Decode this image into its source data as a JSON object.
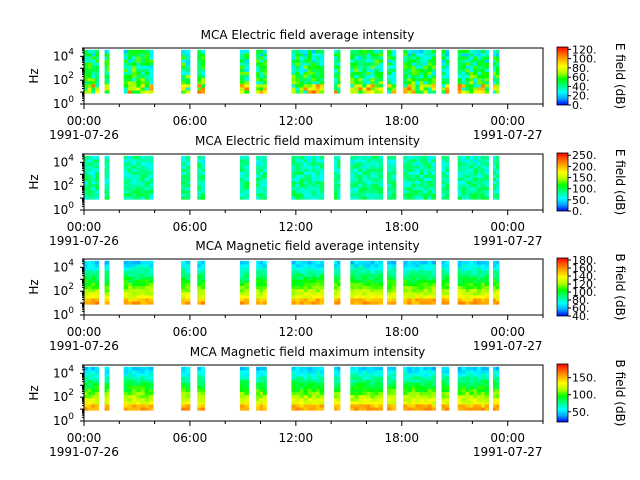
{
  "figure": {
    "x_tick_labels": [
      "00:00",
      "06:00",
      "12:00",
      "18:00",
      "00:00"
    ],
    "x_date_labels": [
      "1991-07-26",
      "",
      "",
      "",
      "1991-07-27"
    ]
  },
  "colormap": [
    "#0000ff",
    "#00aaff",
    "#00ffff",
    "#00ff80",
    "#00ff00",
    "#b0ff00",
    "#ffff00",
    "#ffb000",
    "#ff6000",
    "#ff0000"
  ],
  "chart_data": [
    {
      "type": "heatmap",
      "title": "MCA  Electric field average intensity",
      "ylabel": "Hz",
      "y_scale": "log",
      "ylim": [
        1,
        50000
      ],
      "y_ticks": [
        "10^0",
        "10^2",
        "10^4"
      ],
      "xlim": [
        "1991-07-26T00:00",
        "1991-07-27T02:00"
      ],
      "colorbar": {
        "label": "E field (dB)",
        "range": [
          0,
          125
        ],
        "ticks": [
          "0.",
          "20.",
          "40.",
          "60.",
          "80.",
          "100.",
          "120."
        ]
      },
      "level": "mid",
      "data_intervals": [
        [
          "00:00",
          "00:50"
        ],
        [
          "01:10",
          "01:25"
        ],
        [
          "02:15",
          "03:55"
        ],
        [
          "05:30",
          "06:00"
        ],
        [
          "06:25",
          "06:50"
        ],
        [
          "08:50",
          "09:20"
        ],
        [
          "09:45",
          "10:20"
        ],
        [
          "11:45",
          "13:35"
        ],
        [
          "14:10",
          "14:30"
        ],
        [
          "15:05",
          "16:55"
        ],
        [
          "17:10",
          "17:40"
        ],
        [
          "18:05",
          "19:55"
        ],
        [
          "20:15",
          "20:40"
        ],
        [
          "21:10",
          "22:55"
        ],
        [
          "23:10",
          "23:30"
        ]
      ]
    },
    {
      "type": "heatmap",
      "title": "MCA  Electric field maximum intensity",
      "ylabel": "Hz",
      "y_scale": "log",
      "ylim": [
        1,
        50000
      ],
      "y_ticks": [
        "10^0",
        "10^2",
        "10^4"
      ],
      "xlim": [
        "1991-07-26T00:00",
        "1991-07-27T02:00"
      ],
      "colorbar": {
        "label": "E field (dB)",
        "range": [
          0,
          260
        ],
        "ticks": [
          "0.",
          "50.",
          "100.",
          "150.",
          "200.",
          "250."
        ]
      },
      "level": "low",
      "data_intervals": [
        [
          "00:00",
          "00:50"
        ],
        [
          "01:10",
          "01:25"
        ],
        [
          "02:15",
          "03:55"
        ],
        [
          "05:30",
          "06:00"
        ],
        [
          "06:25",
          "06:50"
        ],
        [
          "08:50",
          "09:20"
        ],
        [
          "09:45",
          "10:20"
        ],
        [
          "11:45",
          "13:35"
        ],
        [
          "14:10",
          "14:30"
        ],
        [
          "15:05",
          "16:55"
        ],
        [
          "17:10",
          "17:40"
        ],
        [
          "18:05",
          "19:55"
        ],
        [
          "20:15",
          "20:40"
        ],
        [
          "21:10",
          "22:55"
        ],
        [
          "23:10",
          "23:30"
        ]
      ]
    },
    {
      "type": "heatmap",
      "title": "MCA  Magnetic field average intensity",
      "ylabel": "Hz",
      "y_scale": "log",
      "ylim": [
        1,
        50000
      ],
      "y_ticks": [
        "10^0",
        "10^2",
        "10^4"
      ],
      "xlim": [
        "1991-07-26T00:00",
        "1991-07-27T02:00"
      ],
      "colorbar": {
        "label": "B field (dB)",
        "range": [
          40,
          185
        ],
        "ticks": [
          "40.",
          "60.",
          "80.",
          "100.",
          "120.",
          "140.",
          "160.",
          "180."
        ]
      },
      "level": "band",
      "data_intervals": [
        [
          "00:00",
          "00:50"
        ],
        [
          "01:10",
          "01:25"
        ],
        [
          "02:15",
          "03:55"
        ],
        [
          "05:30",
          "06:00"
        ],
        [
          "06:25",
          "06:50"
        ],
        [
          "08:50",
          "09:20"
        ],
        [
          "09:45",
          "10:20"
        ],
        [
          "11:45",
          "13:35"
        ],
        [
          "14:10",
          "14:30"
        ],
        [
          "15:05",
          "16:55"
        ],
        [
          "17:10",
          "17:40"
        ],
        [
          "18:05",
          "19:55"
        ],
        [
          "20:15",
          "20:40"
        ],
        [
          "21:10",
          "22:55"
        ],
        [
          "23:10",
          "23:30"
        ]
      ]
    },
    {
      "type": "heatmap",
      "title": "MCA  Magnetic field maximum intensity",
      "ylabel": "Hz",
      "y_scale": "log",
      "ylim": [
        1,
        50000
      ],
      "y_ticks": [
        "10^0",
        "10^2",
        "10^4"
      ],
      "xlim": [
        "1991-07-26T00:00",
        "1991-07-27T02:00"
      ],
      "colorbar": {
        "label": "B field (dB)",
        "range": [
          20,
          190
        ],
        "ticks": [
          "50.",
          "100.",
          "150."
        ]
      },
      "level": "band",
      "data_intervals": [
        [
          "00:00",
          "00:50"
        ],
        [
          "01:10",
          "01:25"
        ],
        [
          "02:15",
          "03:55"
        ],
        [
          "05:30",
          "06:00"
        ],
        [
          "06:25",
          "06:50"
        ],
        [
          "08:50",
          "09:20"
        ],
        [
          "09:45",
          "10:20"
        ],
        [
          "11:45",
          "13:35"
        ],
        [
          "14:10",
          "14:30"
        ],
        [
          "15:05",
          "16:55"
        ],
        [
          "17:10",
          "17:40"
        ],
        [
          "18:05",
          "19:55"
        ],
        [
          "20:15",
          "20:40"
        ],
        [
          "21:10",
          "22:55"
        ],
        [
          "23:10",
          "23:30"
        ]
      ]
    }
  ]
}
